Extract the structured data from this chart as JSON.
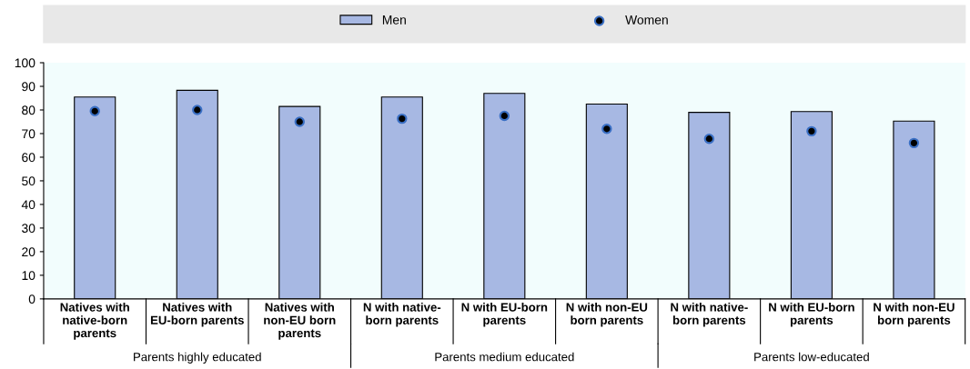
{
  "chart_data": {
    "type": "bar",
    "categories": [
      "Natives with\nnative-born\nparents",
      "Natives with\nEU-born parents",
      "Natives with\nnon-EU born\nparents",
      "N with native-\nborn parents",
      "N with EU-born\nparents",
      "N with non-EU\nborn parents",
      "N with native-\nborn parents",
      "N with EU-born\nparents",
      "N with non-EU\nborn parents"
    ],
    "series": [
      {
        "name": "Men",
        "color": "#a7b8e3",
        "values": [
          85.5,
          88.3,
          81.5,
          85.5,
          87,
          82.5,
          79,
          79.3,
          75.3
        ]
      },
      {
        "name": "Women",
        "type": "scatter",
        "color": "#000000",
        "values": [
          79.5,
          80,
          75,
          76.3,
          77.5,
          72,
          67.8,
          71,
          66
        ]
      }
    ],
    "annotations": [
      "Parents highly educated",
      "Parents medium educated",
      "Parents low-educated"
    ],
    "ylim": [
      0,
      100
    ],
    "yticks": [
      0,
      10,
      20,
      30,
      40,
      50,
      60,
      70,
      80,
      90,
      100
    ],
    "legend": "top",
    "marker": "circle"
  }
}
